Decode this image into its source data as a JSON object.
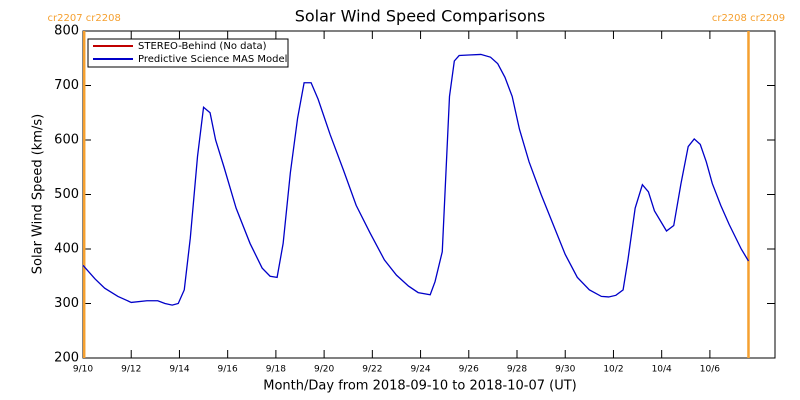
{
  "chart_data": {
    "type": "line",
    "title": "Solar Wind Speed Comparisons",
    "xlabel": "Month/Day from 2018-09-10 to 2018-10-07 (UT)",
    "ylabel": "Solar Wind Speed (km/s)",
    "x": [
      0,
      0.5,
      0.9,
      1.45,
      2.0,
      2.65,
      3.1,
      3.4,
      3.7,
      3.95,
      4.2,
      4.45,
      4.75,
      5.0,
      5.27,
      5.5,
      5.85,
      6.35,
      6.93,
      7.43,
      7.76,
      8.05,
      8.3,
      8.6,
      8.9,
      9.17,
      9.46,
      9.75,
      10.25,
      10.8,
      11.33,
      11.9,
      12.5,
      13.0,
      13.5,
      13.9,
      14.4,
      14.6,
      14.9,
      15.2,
      15.4,
      15.6,
      16.0,
      16.5,
      16.9,
      17.2,
      17.5,
      17.8,
      18.1,
      18.5,
      19.0,
      19.5,
      20.0,
      20.5,
      21.0,
      21.5,
      21.8,
      22.1,
      22.4,
      22.6,
      22.9,
      23.2,
      23.45,
      23.7,
      24.2,
      24.5,
      24.8,
      25.1,
      25.35,
      25.6,
      25.85,
      26.1,
      26.45,
      26.8,
      27.3,
      27.6
    ],
    "series": [
      {
        "name": "STEREO-Behind (No data)",
        "color": "#c00000",
        "values": [
          null,
          null,
          null,
          null,
          null,
          null,
          null,
          null,
          null,
          null,
          null,
          null,
          null,
          null,
          null,
          null,
          null,
          null,
          null,
          null,
          null,
          null,
          null,
          null,
          null,
          null,
          null,
          null,
          null,
          null,
          null,
          null,
          null,
          null,
          null,
          null,
          null,
          null,
          null,
          null,
          null,
          null,
          null,
          null,
          null,
          null,
          null,
          null,
          null,
          null,
          null,
          null,
          null,
          null,
          null,
          null,
          null,
          null,
          null,
          null,
          null,
          null,
          null,
          null,
          null,
          null,
          null,
          null,
          null,
          null,
          null,
          null,
          null,
          null,
          null,
          null
        ]
      },
      {
        "name": "Predictive Science MAS Model",
        "color": "#0000c8",
        "values": [
          370,
          345,
          328,
          313,
          302,
          305,
          305,
          300,
          297,
          300,
          325,
          420,
          570,
          660,
          650,
          600,
          550,
          475,
          410,
          365,
          350,
          348,
          410,
          540,
          640,
          705,
          705,
          675,
          610,
          545,
          480,
          430,
          380,
          352,
          332,
          320,
          316,
          340,
          395,
          680,
          745,
          755,
          756,
          757,
          752,
          740,
          715,
          680,
          620,
          560,
          500,
          445,
          390,
          348,
          325,
          313,
          312,
          315,
          325,
          380,
          475,
          518,
          505,
          470,
          433,
          443,
          520,
          588,
          602,
          592,
          560,
          520,
          480,
          445,
          400,
          378
        ]
      }
    ],
    "xlim": [
      0,
      28.7
    ],
    "xticks": [
      {
        "value": 0,
        "label": "9/10"
      },
      {
        "value": 2,
        "label": "9/12"
      },
      {
        "value": 4,
        "label": "9/14"
      },
      {
        "value": 6,
        "label": "9/16"
      },
      {
        "value": 8,
        "label": "9/18"
      },
      {
        "value": 10,
        "label": "9/20"
      },
      {
        "value": 12,
        "label": "9/22"
      },
      {
        "value": 14,
        "label": "9/24"
      },
      {
        "value": 16,
        "label": "9/26"
      },
      {
        "value": 18,
        "label": "9/28"
      },
      {
        "value": 20,
        "label": "9/30"
      },
      {
        "value": 22,
        "label": "10/2"
      },
      {
        "value": 24,
        "label": "10/4"
      },
      {
        "value": 26,
        "label": "10/6"
      }
    ],
    "ylim": [
      200,
      800
    ],
    "yticks": [
      200,
      300,
      400,
      500,
      600,
      700,
      800
    ],
    "legend": "upper left",
    "annotations": [
      {
        "text": "cr2207 cr2208",
        "x": 0.05,
        "color": "#f5a030"
      },
      {
        "text": "cr2208 cr2209",
        "x": 27.6,
        "color": "#f5a030"
      }
    ]
  }
}
